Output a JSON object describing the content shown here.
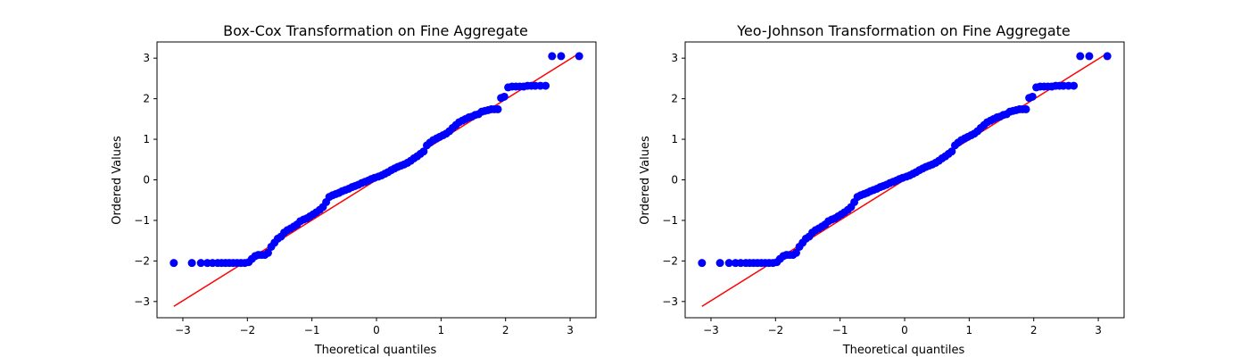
{
  "chart_data": [
    {
      "type": "scatter",
      "title": "Box-Cox Transformation on Fine Aggregate",
      "xlabel": "Theoretical quantiles",
      "ylabel": "Ordered Values",
      "xlim": [
        -3.4,
        3.4
      ],
      "ylim": [
        -3.4,
        3.4
      ],
      "xticks": [
        -3,
        -2,
        -1,
        0,
        1,
        2,
        3
      ],
      "yticks": [
        -3,
        -2,
        -1,
        0,
        1,
        2,
        3
      ],
      "grid": false,
      "colors": {
        "points": "#0000ff",
        "fit_line": "#ff0000"
      },
      "fit_line": {
        "x": [
          -3.14,
          3.14
        ],
        "y": [
          -3.12,
          3.12
        ]
      },
      "series": [
        {
          "x": [
            -3.14,
            -2.86,
            -2.72,
            -2.62,
            -2.54,
            -2.46,
            -2.4,
            -2.34,
            -2.28,
            -2.22,
            -2.16,
            -2.1,
            -2.04,
            -1.98,
            -1.93,
            -1.88,
            -1.83,
            -1.78,
            -1.73,
            -1.68,
            -1.63,
            -1.58,
            -1.53,
            -1.48,
            -1.43,
            -1.38,
            -1.33,
            -1.28,
            -1.23,
            -1.18,
            -1.13,
            -1.08,
            -1.03,
            -0.98,
            -0.93,
            -0.88,
            -0.83,
            -0.78,
            -0.73,
            -0.68,
            -0.63,
            -0.58,
            -0.53,
            -0.48,
            -0.43,
            -0.38,
            -0.33,
            -0.28,
            -0.23,
            -0.18,
            -0.13,
            -0.08,
            -0.03,
            0.03,
            0.08,
            0.13,
            0.18,
            0.23,
            0.28,
            0.33,
            0.38,
            0.43,
            0.48,
            0.53,
            0.58,
            0.63,
            0.68,
            0.73,
            0.78,
            0.83,
            0.88,
            0.93,
            0.98,
            1.03,
            1.08,
            1.13,
            1.18,
            1.23,
            1.28,
            1.33,
            1.38,
            1.43,
            1.48,
            1.53,
            1.58,
            1.63,
            1.68,
            1.73,
            1.78,
            1.83,
            1.88,
            1.93,
            1.98,
            2.04,
            2.1,
            2.16,
            2.22,
            2.28,
            2.34,
            2.4,
            2.46,
            2.54,
            2.62,
            2.72,
            2.86,
            3.14
          ],
          "y": [
            -2.05,
            -2.05,
            -2.05,
            -2.05,
            -2.05,
            -2.05,
            -2.05,
            -2.05,
            -2.05,
            -2.05,
            -2.05,
            -2.05,
            -2.05,
            -2.03,
            -1.95,
            -1.88,
            -1.85,
            -1.85,
            -1.85,
            -1.8,
            -1.65,
            -1.55,
            -1.45,
            -1.4,
            -1.3,
            -1.24,
            -1.2,
            -1.15,
            -1.1,
            -1.02,
            -0.98,
            -0.95,
            -0.9,
            -0.85,
            -0.8,
            -0.74,
            -0.67,
            -0.55,
            -0.42,
            -0.38,
            -0.35,
            -0.32,
            -0.28,
            -0.25,
            -0.22,
            -0.18,
            -0.15,
            -0.12,
            -0.08,
            -0.05,
            -0.02,
            0.02,
            0.05,
            0.08,
            0.11,
            0.15,
            0.19,
            0.24,
            0.28,
            0.32,
            0.35,
            0.38,
            0.42,
            0.47,
            0.53,
            0.58,
            0.64,
            0.7,
            0.85,
            0.92,
            0.98,
            1.02,
            1.06,
            1.1,
            1.14,
            1.2,
            1.28,
            1.35,
            1.42,
            1.46,
            1.5,
            1.54,
            1.56,
            1.6,
            1.62,
            1.68,
            1.7,
            1.72,
            1.74,
            1.74,
            1.74,
            2.02,
            2.05,
            2.28,
            2.3,
            2.3,
            2.3,
            2.3,
            2.32,
            2.32,
            2.32,
            2.32,
            2.32,
            3.05,
            3.05,
            3.05
          ]
        }
      ]
    },
    {
      "type": "scatter",
      "title": "Yeo-Johnson Transformation on Fine Aggregate",
      "xlabel": "Theoretical quantiles",
      "ylabel": "Ordered Values",
      "xlim": [
        -3.4,
        3.4
      ],
      "ylim": [
        -3.4,
        3.4
      ],
      "xticks": [
        -3,
        -2,
        -1,
        0,
        1,
        2,
        3
      ],
      "yticks": [
        -3,
        -2,
        -1,
        0,
        1,
        2,
        3
      ],
      "grid": false,
      "colors": {
        "points": "#0000ff",
        "fit_line": "#ff0000"
      },
      "fit_line": {
        "x": [
          -3.14,
          3.14
        ],
        "y": [
          -3.12,
          3.12
        ]
      },
      "series": [
        {
          "x": [
            -3.14,
            -2.86,
            -2.72,
            -2.62,
            -2.54,
            -2.46,
            -2.4,
            -2.34,
            -2.28,
            -2.22,
            -2.16,
            -2.1,
            -2.04,
            -1.98,
            -1.93,
            -1.88,
            -1.83,
            -1.78,
            -1.73,
            -1.68,
            -1.63,
            -1.58,
            -1.53,
            -1.48,
            -1.43,
            -1.38,
            -1.33,
            -1.28,
            -1.23,
            -1.18,
            -1.13,
            -1.08,
            -1.03,
            -0.98,
            -0.93,
            -0.88,
            -0.83,
            -0.78,
            -0.73,
            -0.68,
            -0.63,
            -0.58,
            -0.53,
            -0.48,
            -0.43,
            -0.38,
            -0.33,
            -0.28,
            -0.23,
            -0.18,
            -0.13,
            -0.08,
            -0.03,
            0.03,
            0.08,
            0.13,
            0.18,
            0.23,
            0.28,
            0.33,
            0.38,
            0.43,
            0.48,
            0.53,
            0.58,
            0.63,
            0.68,
            0.73,
            0.78,
            0.83,
            0.88,
            0.93,
            0.98,
            1.03,
            1.08,
            1.13,
            1.18,
            1.23,
            1.28,
            1.33,
            1.38,
            1.43,
            1.48,
            1.53,
            1.58,
            1.63,
            1.68,
            1.73,
            1.78,
            1.83,
            1.88,
            1.93,
            1.98,
            2.04,
            2.1,
            2.16,
            2.22,
            2.28,
            2.34,
            2.4,
            2.46,
            2.54,
            2.62,
            2.72,
            2.86,
            3.14
          ],
          "y": [
            -2.05,
            -2.05,
            -2.05,
            -2.05,
            -2.05,
            -2.05,
            -2.05,
            -2.05,
            -2.05,
            -2.05,
            -2.05,
            -2.05,
            -2.05,
            -2.03,
            -1.95,
            -1.88,
            -1.85,
            -1.85,
            -1.85,
            -1.8,
            -1.65,
            -1.55,
            -1.45,
            -1.4,
            -1.3,
            -1.24,
            -1.2,
            -1.15,
            -1.1,
            -1.02,
            -0.98,
            -0.95,
            -0.9,
            -0.85,
            -0.8,
            -0.74,
            -0.67,
            -0.55,
            -0.42,
            -0.38,
            -0.35,
            -0.32,
            -0.28,
            -0.25,
            -0.22,
            -0.18,
            -0.15,
            -0.12,
            -0.08,
            -0.05,
            -0.02,
            0.02,
            0.05,
            0.08,
            0.11,
            0.15,
            0.19,
            0.24,
            0.28,
            0.32,
            0.35,
            0.38,
            0.42,
            0.47,
            0.53,
            0.58,
            0.64,
            0.7,
            0.85,
            0.92,
            0.98,
            1.02,
            1.06,
            1.1,
            1.14,
            1.2,
            1.28,
            1.35,
            1.42,
            1.46,
            1.5,
            1.54,
            1.56,
            1.6,
            1.62,
            1.68,
            1.7,
            1.72,
            1.74,
            1.74,
            1.74,
            2.02,
            2.05,
            2.28,
            2.3,
            2.3,
            2.3,
            2.3,
            2.32,
            2.32,
            2.32,
            2.32,
            2.32,
            3.05,
            3.05,
            3.05
          ]
        }
      ]
    }
  ]
}
